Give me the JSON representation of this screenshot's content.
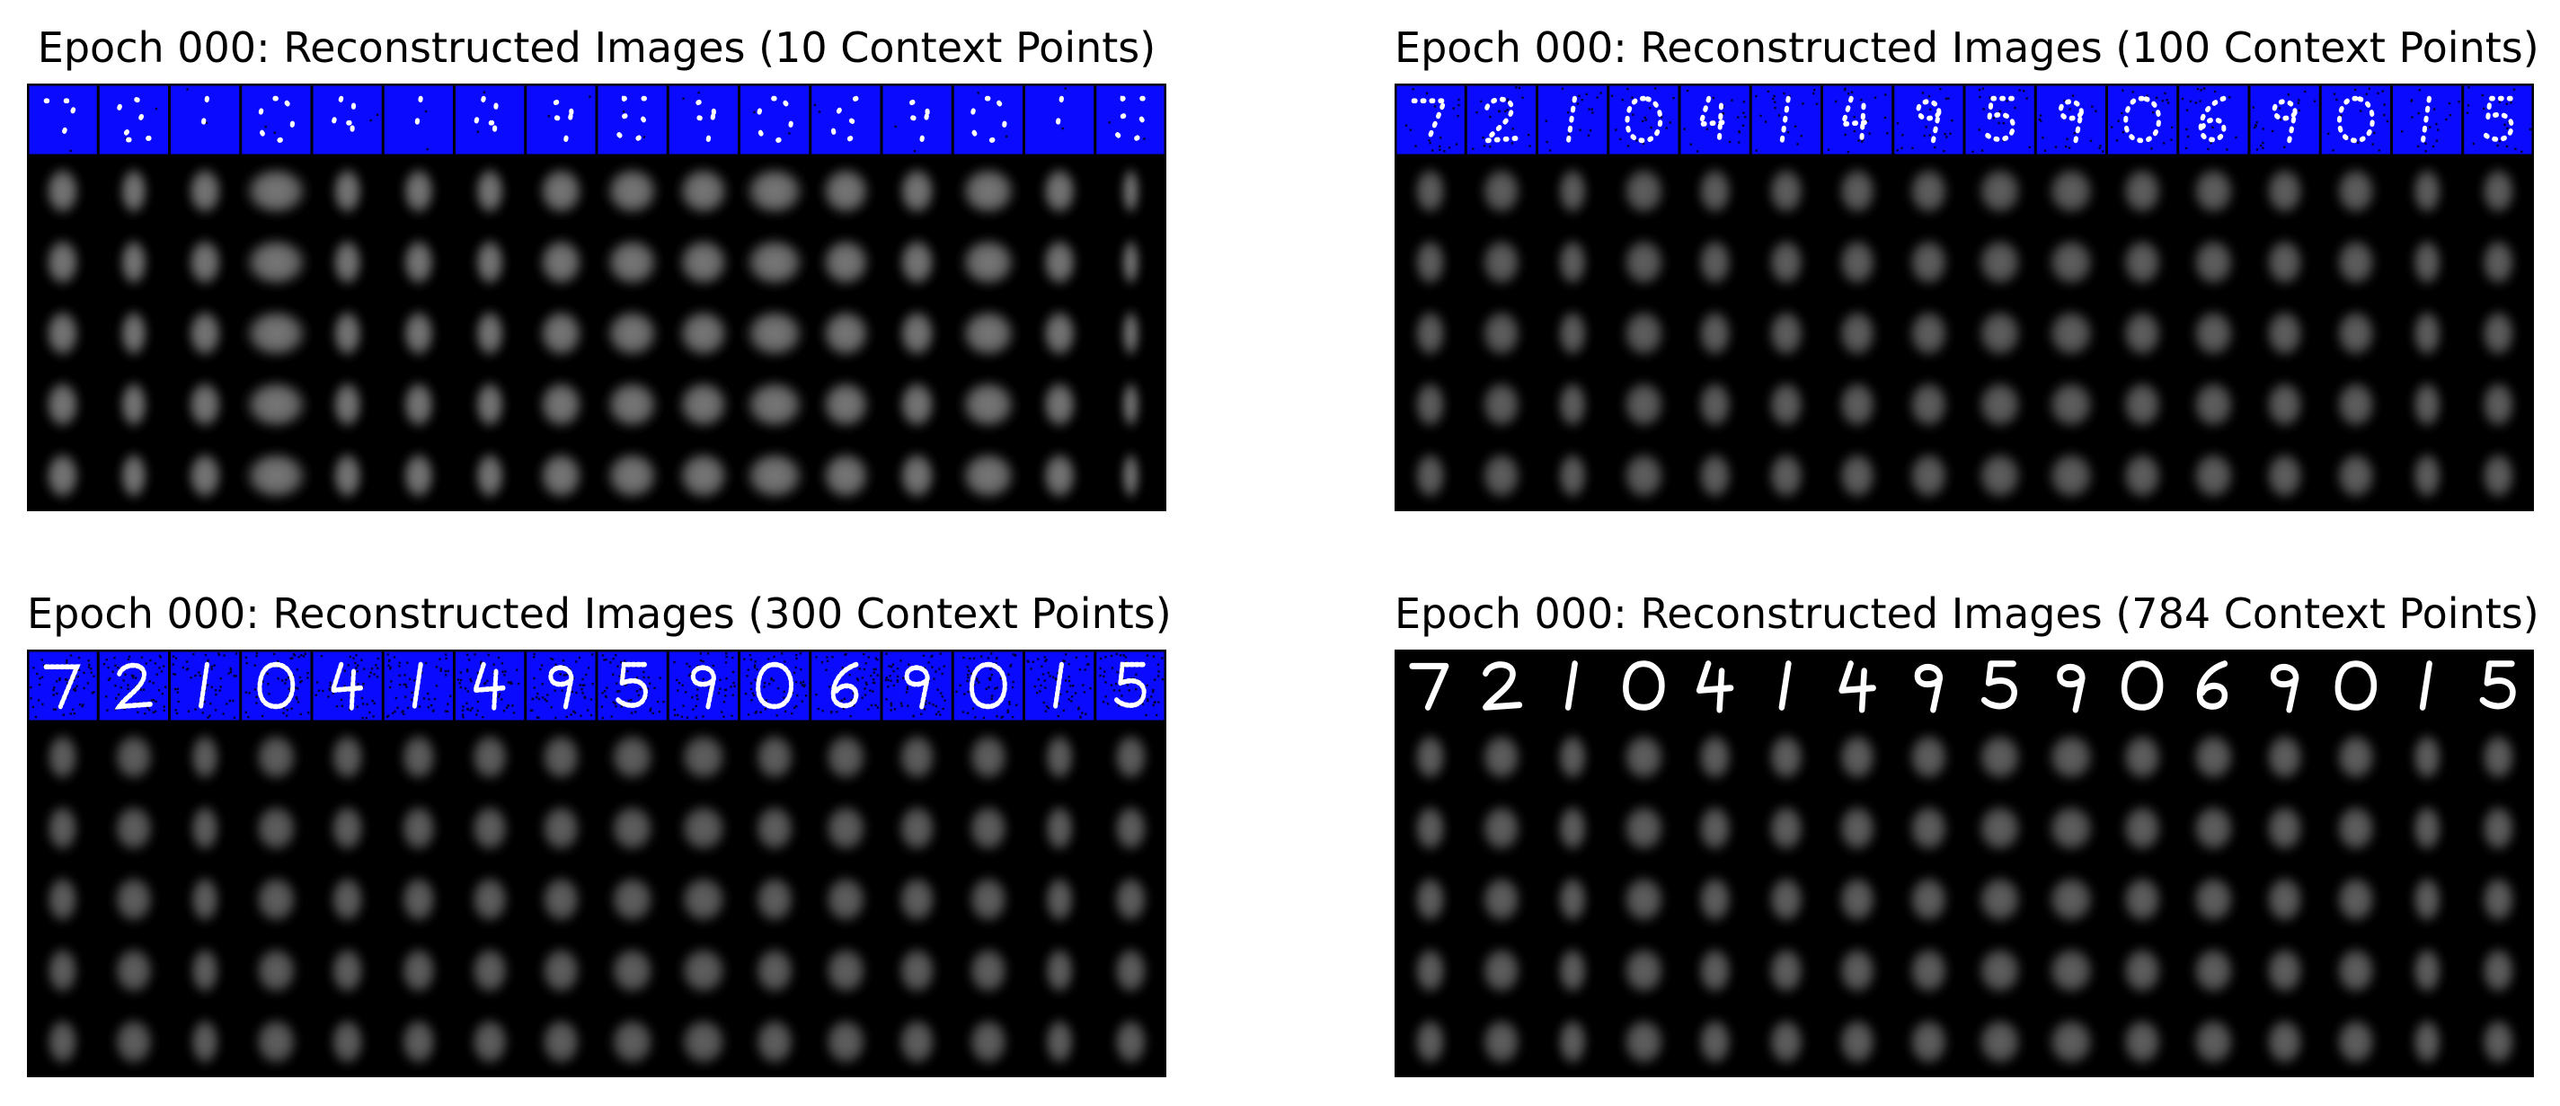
{
  "figure": {
    "background": "#ffffff",
    "panels": [
      {
        "title": "Epoch 000: Reconstructed Images (10 Context Points)",
        "context_points": 10,
        "context_row": "masked-on-blue"
      },
      {
        "title": "Epoch 000: Reconstructed Images (100 Context Points)",
        "context_points": 100,
        "context_row": "masked-on-blue"
      },
      {
        "title": "Epoch 000: Reconstructed Images (300 Context Points)",
        "context_points": 300,
        "context_row": "masked-on-blue"
      },
      {
        "title": "Epoch 000: Reconstructed Images (784 Context Points)",
        "context_points": 784,
        "context_row": "full-digits"
      }
    ],
    "grid": {
      "columns": 16,
      "reconstruction_rows": 5
    },
    "digits": [
      "7",
      "2",
      "1",
      "0",
      "4",
      "1",
      "4",
      "9",
      "5",
      "9",
      "0",
      "6",
      "9",
      "0",
      "1",
      "5"
    ],
    "colors": {
      "mask_blue": "#0a0aff",
      "frame": "#000000",
      "blob_max": "#8a8a8a",
      "digit_stroke": "#ffffff"
    }
  }
}
